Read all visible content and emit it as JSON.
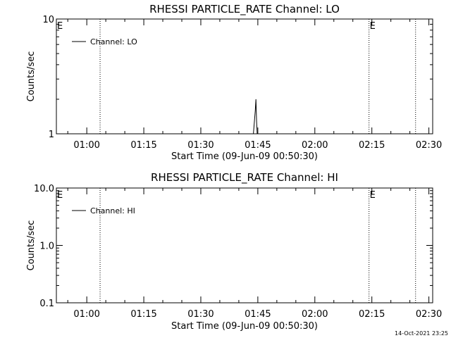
{
  "timestamp": "14-Oct-2021 23:25",
  "chart_data": [
    {
      "type": "line",
      "title": "RHESSI PARTICLE_RATE Channel: LO",
      "xlabel": "Start Time (09-Jun-09 00:50:30)",
      "ylabel": "Counts/sec",
      "y_scale": "log",
      "ylim": [
        1,
        10
      ],
      "y_ticks": [
        {
          "v": 1,
          "label": "1"
        },
        {
          "v": 10,
          "label": "10"
        }
      ],
      "xlim": [
        "00:52:00",
        "02:31:00"
      ],
      "x_ticks": [
        {
          "t": "01:00:00",
          "label": "01:00"
        },
        {
          "t": "01:15:00",
          "label": "01:15"
        },
        {
          "t": "01:30:00",
          "label": "01:30"
        },
        {
          "t": "01:45:00",
          "label": "01:45"
        },
        {
          "t": "02:00:00",
          "label": "02:00"
        },
        {
          "t": "02:15:00",
          "label": "02:15"
        },
        {
          "t": "02:30:00",
          "label": "02:30"
        }
      ],
      "markers": [
        {
          "t": "00:52:00",
          "label": "E"
        },
        {
          "t": "01:03:30",
          "label": ""
        },
        {
          "t": "02:14:15",
          "label": "E"
        },
        {
          "t": "02:26:30",
          "label": ""
        }
      ],
      "legend": {
        "position": "top-left",
        "entries": [
          "Channel: LO"
        ]
      },
      "series": [
        {
          "name": "Channel: LO",
          "points": [
            {
              "t": "01:43:50",
              "v": 1.0
            },
            {
              "t": "01:44:20",
              "v": 1.6
            },
            {
              "t": "01:44:30",
              "v": 2.0
            },
            {
              "t": "01:44:40",
              "v": 1.3
            },
            {
              "t": "01:44:50",
              "v": 1.0
            }
          ]
        }
      ]
    },
    {
      "type": "line",
      "title": "RHESSI PARTICLE_RATE Channel: HI",
      "xlabel": "Start Time (09-Jun-09 00:50:30)",
      "ylabel": "Counts/sec",
      "y_scale": "log",
      "ylim": [
        0.1,
        10
      ],
      "y_ticks": [
        {
          "v": 0.1,
          "label": "0.1"
        },
        {
          "v": 1,
          "label": "1.0"
        },
        {
          "v": 10,
          "label": "10.0"
        }
      ],
      "xlim": [
        "00:52:00",
        "02:31:00"
      ],
      "x_ticks": [
        {
          "t": "01:00:00",
          "label": "01:00"
        },
        {
          "t": "01:15:00",
          "label": "01:15"
        },
        {
          "t": "01:30:00",
          "label": "01:30"
        },
        {
          "t": "01:45:00",
          "label": "01:45"
        },
        {
          "t": "02:00:00",
          "label": "02:00"
        },
        {
          "t": "02:15:00",
          "label": "02:15"
        },
        {
          "t": "02:30:00",
          "label": "02:30"
        }
      ],
      "markers": [
        {
          "t": "00:52:00",
          "label": "E"
        },
        {
          "t": "01:03:30",
          "label": ""
        },
        {
          "t": "02:14:15",
          "label": "E"
        },
        {
          "t": "02:26:30",
          "label": ""
        }
      ],
      "legend": {
        "position": "top-left",
        "entries": [
          "Channel: HI"
        ]
      },
      "series": [
        {
          "name": "Channel: HI",
          "points": []
        }
      ]
    }
  ]
}
